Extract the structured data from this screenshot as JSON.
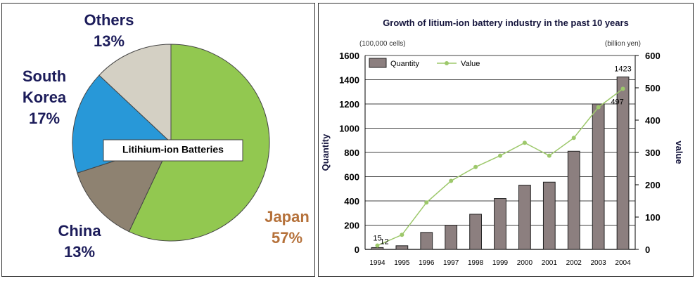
{
  "chart_data": [
    {
      "type": "pie",
      "center_label": "Litihium-ion Batteries",
      "slices": [
        {
          "name": "Japan",
          "value": 57,
          "label": "57%",
          "color": "#92c850",
          "text_color": "#b5713a"
        },
        {
          "name": "China",
          "value": 13,
          "label": "13%",
          "color": "#8e8271",
          "text_color": "#1c1c5a"
        },
        {
          "name_lines": [
            "South",
            "Korea"
          ],
          "value": 17,
          "label": "17%",
          "color": "#2898d8",
          "text_color": "#1c1c5a"
        },
        {
          "name": "Others",
          "value": 13,
          "label": "13%",
          "color": "#d4d0c4",
          "text_color": "#1c1c5a"
        }
      ]
    },
    {
      "type": "bar",
      "title": "Growth of litium-ion battery industry in the past 10 years",
      "y_unit_left": "(100,000 cells)",
      "y_unit_right": "(billion yen)",
      "ylabel": "Quantity",
      "ylabel_right": "value",
      "categories": [
        "1994",
        "1995",
        "1996",
        "1997",
        "1998",
        "1999",
        "2000",
        "2001",
        "2002",
        "2003",
        "2004"
      ],
      "ylim": [
        0,
        1600
      ],
      "ylim_right": [
        0,
        600
      ],
      "yticks": [
        0,
        200,
        400,
        600,
        800,
        1000,
        1200,
        1400,
        1600
      ],
      "yticks_right": [
        0,
        100,
        200,
        300,
        400,
        500,
        600
      ],
      "grid": true,
      "legend_position": "top-left",
      "series": [
        {
          "name": "Quantity",
          "kind": "bar",
          "axis": "left",
          "color": "#8c7f7f",
          "values": [
            15,
            30,
            140,
            200,
            290,
            420,
            530,
            555,
            810,
            1200,
            1423
          ]
        },
        {
          "name": "Value",
          "kind": "line",
          "axis": "right",
          "color": "#9dc86b",
          "values": [
            12,
            45,
            145,
            212,
            255,
            290,
            330,
            290,
            345,
            440,
            497
          ]
        }
      ],
      "data_labels": [
        {
          "series": "Quantity",
          "category": "1994",
          "text": "15"
        },
        {
          "series": "Value",
          "category": "1994",
          "text": "12"
        },
        {
          "series": "Quantity",
          "category": "2004",
          "text": "1423"
        },
        {
          "series": "Value",
          "category": "2004",
          "text": "497"
        }
      ]
    }
  ]
}
